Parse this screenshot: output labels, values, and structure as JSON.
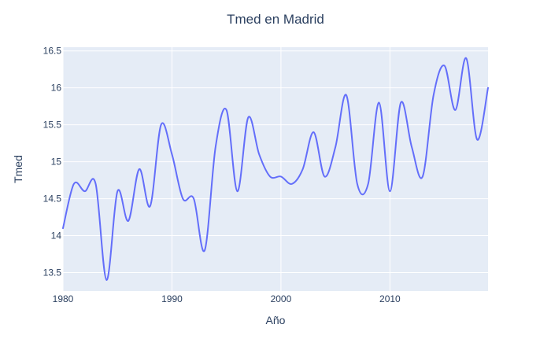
{
  "chart_data": {
    "type": "line",
    "title": "Tmed en Madrid",
    "xlabel": "Año",
    "ylabel": "Tmed",
    "xlim": [
      1980,
      2019
    ],
    "ylim": [
      13.25,
      16.55
    ],
    "x_ticks": [
      1980,
      1990,
      2000,
      2010
    ],
    "y_ticks": [
      13.5,
      14,
      14.5,
      15,
      15.5,
      16,
      16.5
    ],
    "y_tick_labels": [
      "13.5",
      "14",
      "14.5",
      "15",
      "15.5",
      "16",
      "16.5"
    ],
    "grid": true,
    "legend": "none",
    "series": [
      {
        "color": "#636efa",
        "x": [
          1980,
          1981,
          1982,
          1983,
          1984,
          1985,
          1986,
          1987,
          1988,
          1989,
          1990,
          1991,
          1992,
          1993,
          1994,
          1995,
          1996,
          1997,
          1998,
          1999,
          2000,
          2001,
          2002,
          2003,
          2004,
          2005,
          2006,
          2007,
          2008,
          2009,
          2010,
          2011,
          2012,
          2013,
          2014,
          2015,
          2016,
          2017,
          2018,
          2019
        ],
        "values": [
          14.1,
          14.7,
          14.6,
          14.7,
          13.4,
          14.6,
          14.2,
          14.9,
          14.4,
          15.5,
          15.1,
          14.5,
          14.5,
          13.8,
          15.2,
          15.7,
          14.6,
          15.6,
          15.1,
          14.8,
          14.8,
          14.7,
          14.9,
          15.4,
          14.8,
          15.2,
          15.9,
          14.7,
          14.7,
          15.8,
          14.6,
          15.8,
          15.2,
          14.8,
          15.9,
          16.3,
          15.7,
          16.4,
          15.3,
          16.0
        ]
      }
    ]
  }
}
